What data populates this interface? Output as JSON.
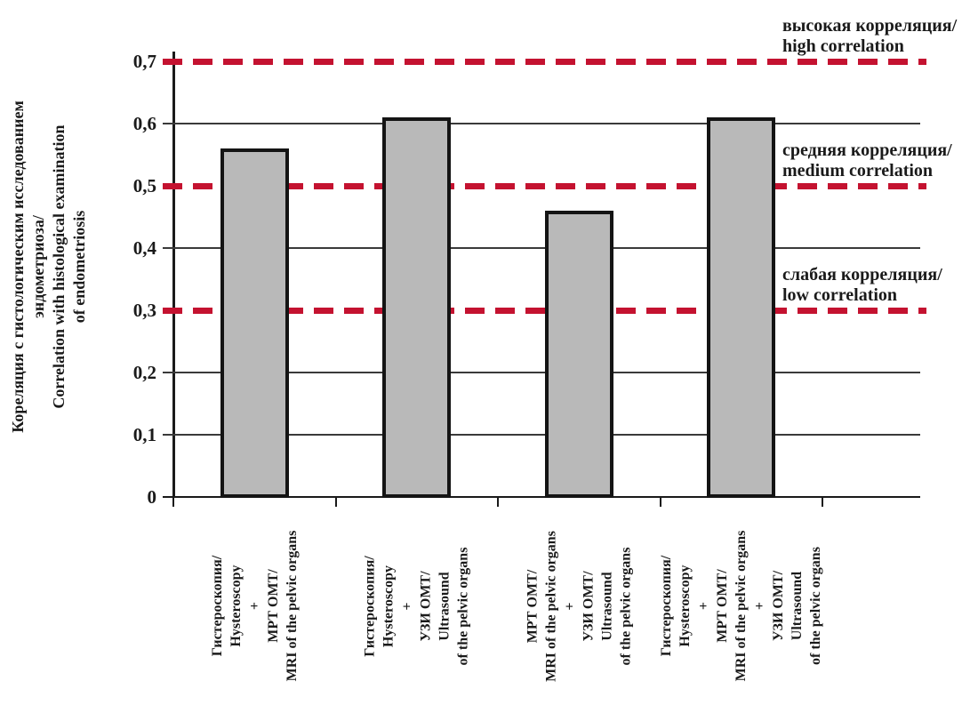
{
  "chart_data": {
    "type": "bar",
    "title": "",
    "ylabel_lines": [
      "Кореляция с гистологическим исследованием",
      "эндометриоза/",
      "Correlation with histological examination",
      "of endometriosis"
    ],
    "ylim": [
      0,
      0.7
    ],
    "grid": "on",
    "yticks": [
      {
        "value": 0.7,
        "label": "0,7"
      },
      {
        "value": 0.6,
        "label": "0,6"
      },
      {
        "value": 0.5,
        "label": "0,5"
      },
      {
        "value": 0.4,
        "label": "0,4"
      },
      {
        "value": 0.3,
        "label": "0,3"
      },
      {
        "value": 0.2,
        "label": "0,2"
      },
      {
        "value": 0.1,
        "label": "0,1"
      },
      {
        "value": 0,
        "label": "0"
      }
    ],
    "solid_gridline_values": [
      0.6,
      0.4,
      0.2,
      0.1
    ],
    "thresholds": [
      {
        "value": 0.7,
        "label_ru": "высокая корреляция/",
        "label_en": "high correlation"
      },
      {
        "value": 0.5,
        "label_ru": "средняя корреляция/",
        "label_en": "medium correlation"
      },
      {
        "value": 0.3,
        "label_ru": "слабая корреляция/",
        "label_en": "low correlation"
      }
    ],
    "categories": [
      {
        "lines": [
          "Гистероскопия/",
          "Hysteroscopy",
          "+",
          "МРТ ОМТ/",
          "MRI of the pelvic organs"
        ]
      },
      {
        "lines": [
          "Гистероскопия/",
          "Hysteroscopy",
          "+",
          "УЗИ ОМТ/",
          "Ultrasound",
          "of the pelvic organs"
        ]
      },
      {
        "lines": [
          "МРТ ОМТ/",
          "MRI of the pelvic organs",
          "+",
          "УЗИ ОМТ/",
          "Ultrasound",
          "of the pelvic organs"
        ]
      },
      {
        "lines": [
          "Гистероскопия/",
          "Hysteroscopy",
          "+",
          "МРТ ОМТ/",
          "MRI of the pelvic organs",
          "+",
          "УЗИ ОМТ/",
          "Ultrasound",
          "of the pelvic organs"
        ]
      }
    ],
    "values": [
      0.56,
      0.61,
      0.46,
      0.61
    ],
    "colors": {
      "bar_fill": "#b9b9b9",
      "bar_border": "#141414",
      "threshold_red": "#c41230",
      "grid": "#3a3a3a",
      "axis": "#1a1a1a",
      "text": "#1a1a1a",
      "background": "#ffffff"
    }
  }
}
